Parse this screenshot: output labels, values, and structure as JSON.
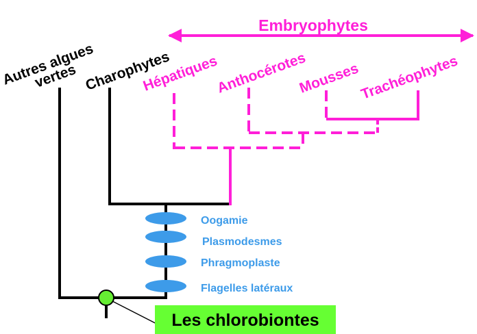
{
  "colors": {
    "black": "#000000",
    "magenta": "#ff1fd8",
    "blue": "#3d9be9",
    "green": "#66ff33",
    "node_green": "#66ee33"
  },
  "taxa": {
    "autres_algues_line1": "Autres algues",
    "autres_algues_line2": "vertes",
    "charophytes": "Charophytes",
    "hepatiques": "Hépatiques",
    "anthocerotes": "Anthocérotes",
    "mousses": "Mousses",
    "tracheophytes": "Trachéophytes"
  },
  "group_label": "Embryophytes",
  "characters": [
    "Oogamie",
    "Plasmodesmes",
    "Phragmoplaste",
    "Flagelles latéraux"
  ],
  "clade_box_label": "Les chlorobiontes"
}
